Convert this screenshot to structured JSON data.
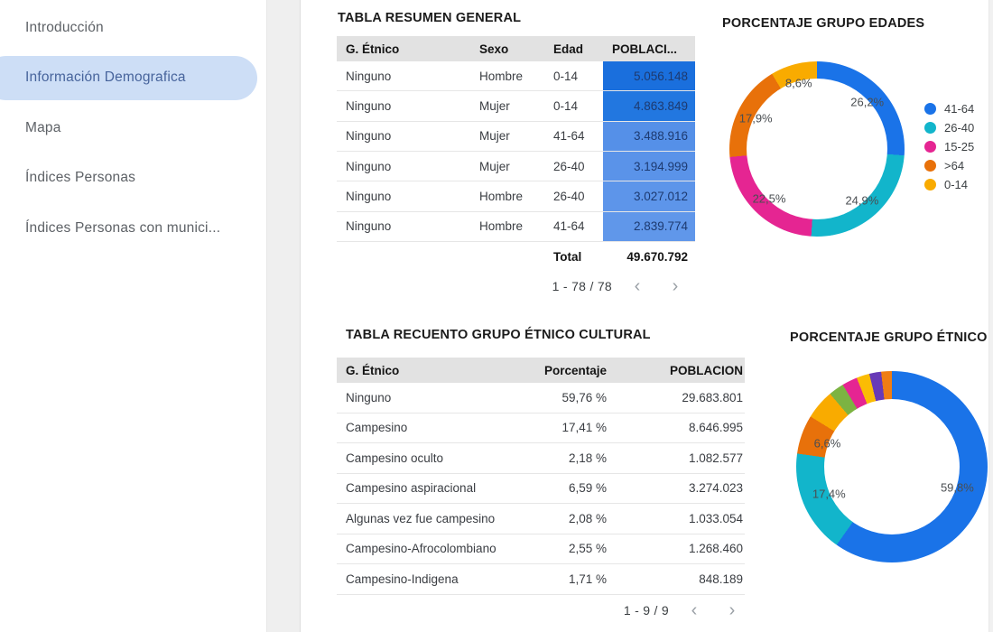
{
  "sidebar": {
    "items": [
      {
        "label": "Introducción",
        "selected": false
      },
      {
        "label": "Información Demografica",
        "selected": true
      },
      {
        "label": "Mapa",
        "selected": false
      },
      {
        "label": "Índices Personas",
        "selected": false
      },
      {
        "label": "Índices Personas con munici...",
        "selected": false
      }
    ]
  },
  "icons": {
    "chevron_left": "‹",
    "chevron_right": "›"
  },
  "table_general": {
    "title": "TABLA RESUMEN GENERAL",
    "columns": [
      "G. Étnico",
      "Sexo",
      "Edad",
      "POBLACI..."
    ],
    "rows": [
      {
        "g_etnico": "Ninguno",
        "sexo": "Hombre",
        "edad": "0-14",
        "poblacion": "5.056.148",
        "cell_bg": "#1a6fdd"
      },
      {
        "g_etnico": "Ninguno",
        "sexo": "Mujer",
        "edad": "0-14",
        "poblacion": "4.863.849",
        "cell_bg": "#2277e0"
      },
      {
        "g_etnico": "Ninguno",
        "sexo": "Mujer",
        "edad": "41-64",
        "poblacion": "3.488.916",
        "cell_bg": "#5590e8"
      },
      {
        "g_etnico": "Ninguno",
        "sexo": "Mujer",
        "edad": "26-40",
        "poblacion": "3.194.999",
        "cell_bg": "#5a93e9"
      },
      {
        "g_etnico": "Ninguno",
        "sexo": "Hombre",
        "edad": "26-40",
        "poblacion": "3.027.012",
        "cell_bg": "#5d95ea"
      },
      {
        "g_etnico": "Ninguno",
        "sexo": "Hombre",
        "edad": "41-64",
        "poblacion": "2.839.774",
        "cell_bg": "#6097ea"
      }
    ],
    "total_label": "Total",
    "total_value": "49.670.792",
    "pagination": "1 - 78 / 78"
  },
  "table_etnico": {
    "title": "TABLA RECUENTO GRUPO ÉTNICO CULTURAL",
    "columns": [
      "G. Étnico",
      "Porcentaje",
      "POBLACION"
    ],
    "rows": [
      {
        "g_etnico": "Ninguno",
        "porcentaje": "59,76 %",
        "poblacion": "29.683.801"
      },
      {
        "g_etnico": "Campesino",
        "porcentaje": "17,41 %",
        "poblacion": "8.646.995"
      },
      {
        "g_etnico": "Campesino oculto",
        "porcentaje": "2,18 %",
        "poblacion": "1.082.577"
      },
      {
        "g_etnico": "Campesino aspiracional",
        "porcentaje": "6,59 %",
        "poblacion": "3.274.023"
      },
      {
        "g_etnico": "Algunas vez fue campesino",
        "porcentaje": "2,08 %",
        "poblacion": "1.033.054"
      },
      {
        "g_etnico": "Campesino-Afrocolombiano",
        "porcentaje": "2,55 %",
        "poblacion": "1.268.460"
      },
      {
        "g_etnico": "Campesino-Indigena",
        "porcentaje": "1,71 %",
        "poblacion": "848.189"
      }
    ],
    "pagination": "1 - 9 / 9"
  },
  "charts": [
    {
      "type": "donut",
      "title": "PORCENTAJE GRUPO EDADES",
      "legend_position": "right",
      "slices": [
        {
          "name": "41-64",
          "value": 26.2,
          "label": "26,2%",
          "color": "#1a73e8"
        },
        {
          "name": "26-40",
          "value": 24.9,
          "label": "24,9%",
          "color": "#12b5cb"
        },
        {
          "name": "15-25",
          "value": 22.5,
          "label": "22,5%",
          "color": "#e52592"
        },
        {
          "name": ">64",
          "value": 17.9,
          "label": "17,9%",
          "color": "#e8710a"
        },
        {
          "name": "0-14",
          "value": 8.6,
          "label": "8,6%",
          "color": "#f9ab00"
        }
      ]
    },
    {
      "type": "donut",
      "title": "PORCENTAJE GRUPO ÉTNICO",
      "legend_position": "none",
      "slices": [
        {
          "value": 59.8,
          "label": "59,8%",
          "color": "#1a73e8"
        },
        {
          "value": 17.4,
          "label": "17,4%",
          "color": "#12b5cb"
        },
        {
          "value": 6.6,
          "label": "6,6%",
          "color": "#e8710a"
        },
        {
          "value": 5.0,
          "label": "",
          "color": "#f9ab00"
        },
        {
          "value": 2.6,
          "label": "",
          "color": "#7cb342"
        },
        {
          "value": 2.6,
          "label": "",
          "color": "#e52592"
        },
        {
          "value": 2.2,
          "label": "",
          "color": "#fbbc04"
        },
        {
          "value": 2.0,
          "label": "",
          "color": "#673ab7"
        },
        {
          "value": 1.8,
          "label": "",
          "color": "#ef7d14"
        }
      ]
    }
  ]
}
